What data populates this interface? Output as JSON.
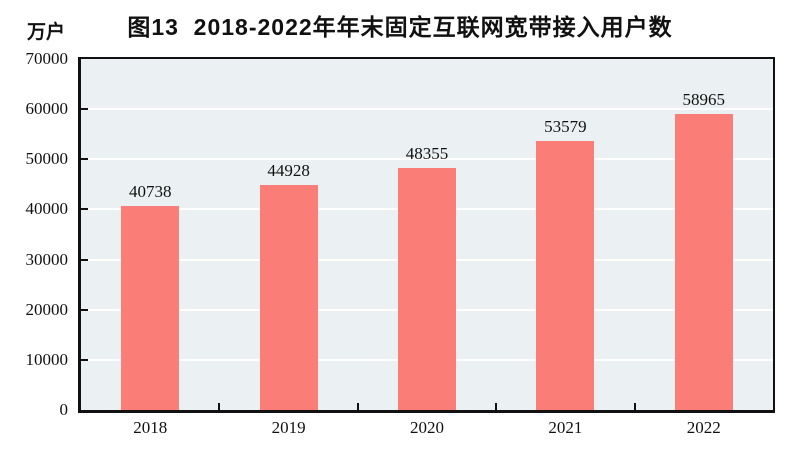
{
  "chart_data": {
    "type": "bar",
    "title": "图13  2018-2022年年末固定互联网宽带接入用户数",
    "unit_label": "万户",
    "categories": [
      "2018",
      "2019",
      "2020",
      "2021",
      "2022"
    ],
    "values": [
      40738,
      44928,
      48355,
      53579,
      58965
    ],
    "value_labels": [
      "40738",
      "44928",
      "48355",
      "53579",
      "58965"
    ],
    "xlabel": "",
    "ylabel": "万户",
    "ylim": [
      0,
      70000
    ],
    "ytick_interval": 10000,
    "yticks": [
      0,
      10000,
      20000,
      30000,
      40000,
      50000,
      60000,
      70000
    ],
    "grid": "horizontal",
    "legend": "none",
    "colors": {
      "bar": "#fb7d78",
      "plot_background": "#ebf1f3",
      "gridline": "#ffffff",
      "axis": "#111111",
      "text": "#111111",
      "page_background": "#ffffff"
    }
  }
}
